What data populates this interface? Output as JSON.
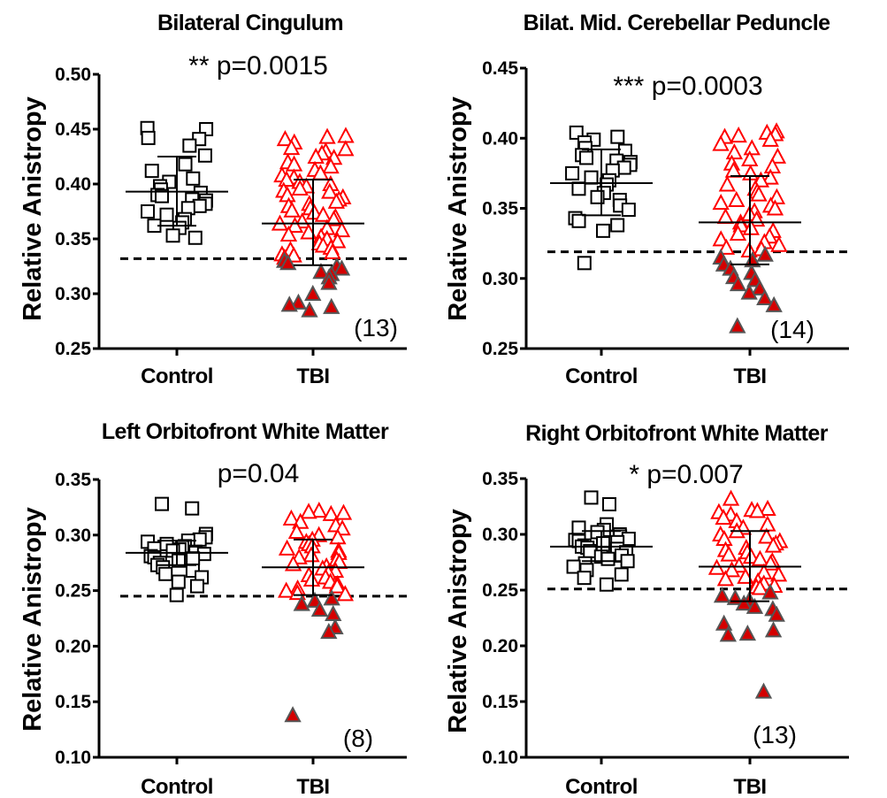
{
  "chart_data": [
    {
      "type": "scatter",
      "title": "Bilateral  Cingulum",
      "annotation": "** p=0.0015",
      "ylabel": "Relative Anistropy",
      "categories": [
        "Control",
        "TBI"
      ],
      "ylim": [
        0.25,
        0.5
      ],
      "yticks": [
        "0.25",
        "0.30",
        "0.35",
        "0.40",
        "0.45",
        "0.50"
      ],
      "threshold": 0.332,
      "count_label": "(13)",
      "series": [
        {
          "group": "Control",
          "mean": 0.393,
          "sd_low": 0.362,
          "sd_high": 0.425,
          "values": [
            0.451,
            0.45,
            0.442,
            0.441,
            0.435,
            0.426,
            0.418,
            0.412,
            0.405,
            0.402,
            0.398,
            0.395,
            0.392,
            0.39,
            0.389,
            0.386,
            0.385,
            0.382,
            0.38,
            0.378,
            0.375,
            0.372,
            0.368,
            0.365,
            0.362,
            0.36,
            0.353,
            0.351
          ]
        },
        {
          "group": "TBI",
          "mean": 0.364,
          "sd_low": 0.326,
          "sd_high": 0.404,
          "values": [
            0.444,
            0.443,
            0.441,
            0.438,
            0.433,
            0.432,
            0.43,
            0.428,
            0.425,
            0.424,
            0.42,
            0.418,
            0.416,
            0.413,
            0.41,
            0.408,
            0.406,
            0.404,
            0.402,
            0.4,
            0.398,
            0.396,
            0.394,
            0.393,
            0.39,
            0.388,
            0.386,
            0.384,
            0.382,
            0.38,
            0.378,
            0.376,
            0.374,
            0.372,
            0.37,
            0.368,
            0.366,
            0.364,
            0.362,
            0.36,
            0.358,
            0.356,
            0.354,
            0.352,
            0.35,
            0.348,
            0.346,
            0.344,
            0.342,
            0.34,
            0.338,
            0.336,
            0.335,
            0.333
          ],
          "low_values": [
            0.33,
            0.328,
            0.325,
            0.323,
            0.32,
            0.318,
            0.315,
            0.31,
            0.3,
            0.292,
            0.29,
            0.288,
            0.285
          ]
        }
      ]
    },
    {
      "type": "scatter",
      "title": "Bilat. Mid.  Cerebellar Peduncle",
      "annotation": "*** p=0.0003",
      "ylabel": "Relative Anistropy",
      "categories": [
        "Control",
        "TBI"
      ],
      "ylim": [
        0.25,
        0.45
      ],
      "yticks": [
        "0.25",
        "0.30",
        "0.35",
        "0.40",
        "0.45"
      ],
      "threshold": 0.319,
      "count_label": "(14)",
      "series": [
        {
          "group": "Control",
          "mean": 0.368,
          "sd_low": 0.345,
          "sd_high": 0.392,
          "values": [
            0.404,
            0.401,
            0.399,
            0.397,
            0.393,
            0.391,
            0.388,
            0.386,
            0.384,
            0.383,
            0.381,
            0.379,
            0.377,
            0.375,
            0.372,
            0.37,
            0.367,
            0.364,
            0.361,
            0.358,
            0.356,
            0.352,
            0.349,
            0.343,
            0.341,
            0.338,
            0.334,
            0.311
          ]
        },
        {
          "group": "TBI",
          "mean": 0.34,
          "sd_low": 0.31,
          "sd_high": 0.373,
          "values": [
            0.405,
            0.404,
            0.403,
            0.402,
            0.401,
            0.399,
            0.396,
            0.393,
            0.39,
            0.387,
            0.385,
            0.382,
            0.38,
            0.377,
            0.375,
            0.372,
            0.37,
            0.367,
            0.364,
            0.362,
            0.36,
            0.358,
            0.356,
            0.354,
            0.352,
            0.35,
            0.348,
            0.346,
            0.344,
            0.342,
            0.34,
            0.338,
            0.336,
            0.334,
            0.332,
            0.33,
            0.328,
            0.326,
            0.324,
            0.322,
            0.321,
            0.32
          ],
          "low_values": [
            0.317,
            0.315,
            0.313,
            0.31,
            0.307,
            0.304,
            0.301,
            0.299,
            0.296,
            0.293,
            0.29,
            0.286,
            0.281,
            0.266
          ]
        }
      ]
    },
    {
      "type": "scatter",
      "title": "Left Orbitofront White Matter",
      "annotation": "p=0.04",
      "ylabel": "Relative Anistropy",
      "categories": [
        "Control",
        "TBI"
      ],
      "ylim": [
        0.1,
        0.35
      ],
      "yticks": [
        "0.10",
        "0.15",
        "0.20",
        "0.25",
        "0.30",
        "0.35"
      ],
      "threshold": 0.245,
      "count_label": "(8)",
      "series": [
        {
          "group": "Control",
          "mean": 0.284,
          "sd_low": 0.273,
          "sd_high": 0.295,
          "values": [
            0.328,
            0.324,
            0.301,
            0.298,
            0.296,
            0.295,
            0.294,
            0.292,
            0.29,
            0.289,
            0.288,
            0.287,
            0.286,
            0.285,
            0.284,
            0.283,
            0.281,
            0.28,
            0.279,
            0.277,
            0.275,
            0.273,
            0.271,
            0.268,
            0.265,
            0.262,
            0.258,
            0.254,
            0.246
          ]
        },
        {
          "group": "TBI",
          "mean": 0.271,
          "sd_low": 0.246,
          "sd_high": 0.296,
          "values": [
            0.322,
            0.321,
            0.32,
            0.319,
            0.315,
            0.312,
            0.309,
            0.306,
            0.303,
            0.3,
            0.298,
            0.296,
            0.294,
            0.292,
            0.29,
            0.288,
            0.286,
            0.284,
            0.282,
            0.28,
            0.278,
            0.276,
            0.274,
            0.272,
            0.27,
            0.268,
            0.266,
            0.264,
            0.262,
            0.26,
            0.258,
            0.256,
            0.254,
            0.252,
            0.25,
            0.248,
            0.247
          ],
          "low_values": [
            0.243,
            0.241,
            0.238,
            0.233,
            0.229,
            0.217,
            0.213,
            0.138
          ]
        }
      ]
    },
    {
      "type": "scatter",
      "title": "Right Orbitofront White Matter",
      "annotation": "* p=0.007",
      "ylabel": "Relative Anistropy",
      "categories": [
        "Control",
        "TBI"
      ],
      "ylim": [
        0.1,
        0.35
      ],
      "yticks": [
        "0.10",
        "0.15",
        "0.20",
        "0.25",
        "0.30",
        "0.35"
      ],
      "threshold": 0.251,
      "count_label": "(13)",
      "series": [
        {
          "group": "Control",
          "mean": 0.289,
          "sd_low": 0.276,
          "sd_high": 0.303,
          "values": [
            0.333,
            0.327,
            0.309,
            0.306,
            0.304,
            0.302,
            0.3,
            0.298,
            0.296,
            0.295,
            0.294,
            0.293,
            0.292,
            0.29,
            0.289,
            0.288,
            0.287,
            0.285,
            0.284,
            0.283,
            0.281,
            0.28,
            0.278,
            0.276,
            0.274,
            0.271,
            0.268,
            0.264,
            0.261,
            0.255
          ]
        },
        {
          "group": "TBI",
          "mean": 0.271,
          "sd_low": 0.24,
          "sd_high": 0.303,
          "values": [
            0.332,
            0.323,
            0.322,
            0.321,
            0.32,
            0.318,
            0.315,
            0.312,
            0.309,
            0.306,
            0.303,
            0.3,
            0.298,
            0.296,
            0.294,
            0.292,
            0.29,
            0.288,
            0.286,
            0.284,
            0.282,
            0.28,
            0.278,
            0.276,
            0.274,
            0.272,
            0.27,
            0.268,
            0.266,
            0.264,
            0.262,
            0.26,
            0.258,
            0.256,
            0.254,
            0.253,
            0.252
          ],
          "low_values": [
            0.248,
            0.245,
            0.243,
            0.241,
            0.238,
            0.235,
            0.233,
            0.228,
            0.22,
            0.214,
            0.211,
            0.21,
            0.159
          ]
        }
      ]
    }
  ]
}
